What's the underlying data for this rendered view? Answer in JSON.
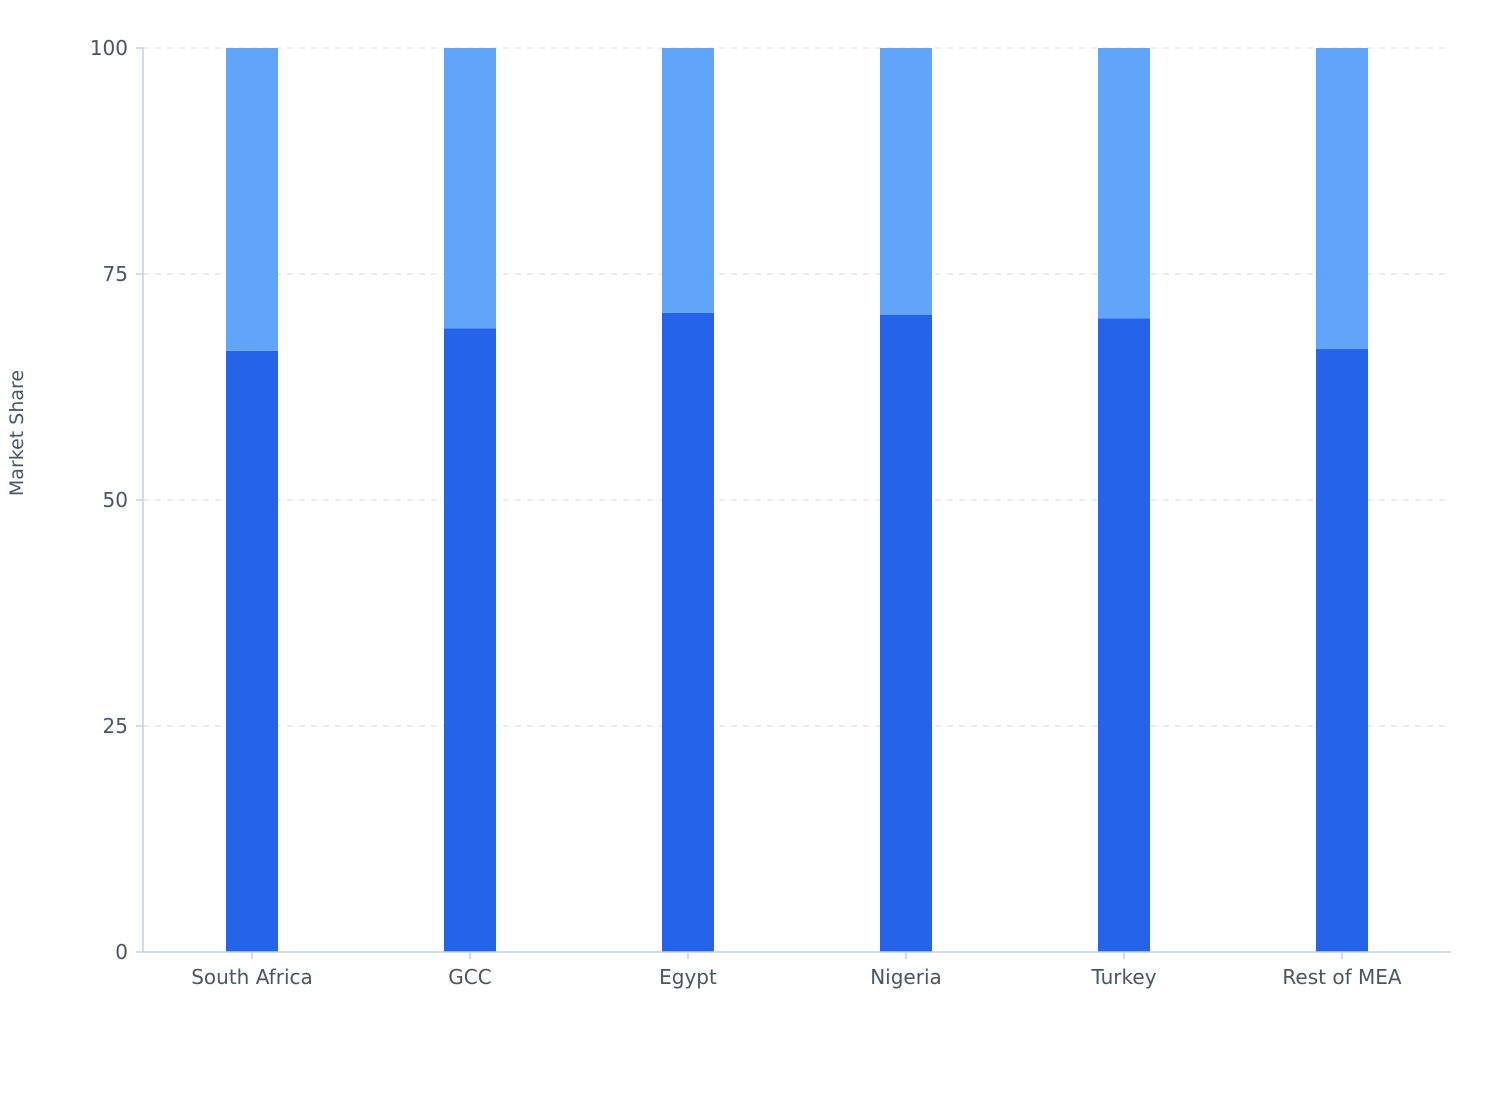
{
  "chart_data": {
    "type": "bar",
    "stacked": true,
    "title": "",
    "xlabel": "",
    "ylabel": "Market Share",
    "ylim": [
      0,
      100
    ],
    "yticks": [
      0,
      25,
      50,
      75,
      100
    ],
    "grid": "horizontal-dashed",
    "legend": "none",
    "categories": [
      "South Africa",
      "GCC",
      "Egypt",
      "Nigeria",
      "Turkey",
      "Rest of MEA"
    ],
    "series": [
      {
        "values": [
          66.5,
          69.0,
          70.7,
          70.5,
          70.1,
          66.7
        ],
        "color": "#2563eb"
      },
      {
        "values": [
          33.5,
          31.0,
          29.3,
          29.5,
          29.9,
          33.3
        ],
        "color": "#60a5fa"
      }
    ],
    "colors": {
      "axis": "#c7cde0",
      "grid": "#dfe3ea",
      "text": "#4b5563"
    }
  }
}
